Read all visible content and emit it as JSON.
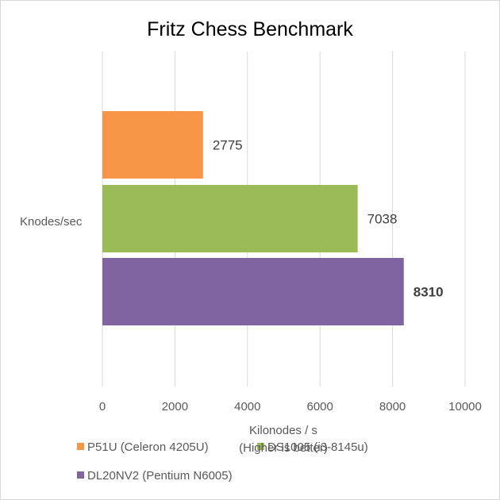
{
  "chart_data": {
    "type": "bar",
    "orientation": "horizontal",
    "title": "Fritz Chess Benchmark",
    "category_label": "Knodes/sec",
    "xlabel": "Kilonodes / s",
    "xlabel_note": "(Higher is better)",
    "xlim": [
      0,
      10000
    ],
    "xticks": [
      "0",
      "2000",
      "4000",
      "6000",
      "8000",
      "10000"
    ],
    "grid": true,
    "legend_position": "bottom",
    "series": [
      {
        "name": "P51U (Celeron 4205U)",
        "value": 2775,
        "label": "2775",
        "color": "#f79646",
        "label_bold": false
      },
      {
        "name": "DS1005 (i3-8145u)",
        "value": 7038,
        "label": "7038",
        "color": "#9bbb59",
        "label_bold": false
      },
      {
        "name": "DL20NV2 (Pentium N6005)",
        "value": 8310,
        "label": "8310",
        "color": "#8064a2",
        "label_bold": true
      }
    ]
  }
}
